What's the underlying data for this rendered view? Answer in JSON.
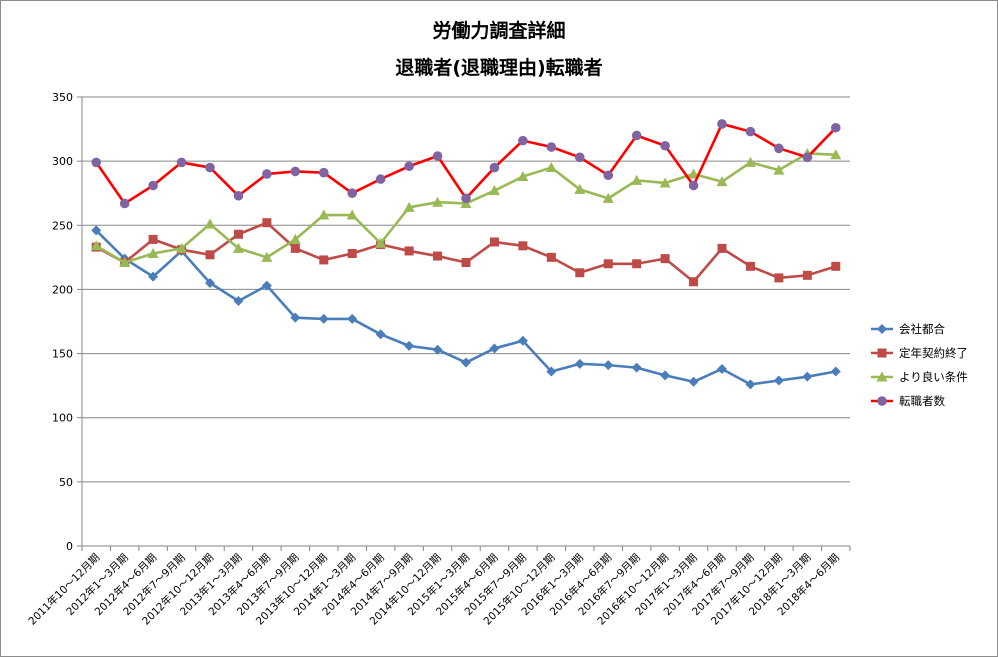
{
  "chart_data": {
    "type": "line",
    "title": [
      "労働力調査詳細",
      "退職者(退職理由)転職者"
    ],
    "xlabel": "",
    "ylabel": "",
    "ylim": [
      0,
      350
    ],
    "yticks": [
      0,
      50,
      100,
      150,
      200,
      250,
      300,
      350
    ],
    "grid": true,
    "legend_position": "right",
    "categories": [
      "2011年10～12月期",
      "2012年1～3月期",
      "2012年4～6月期",
      "2012年7～9月期",
      "2012年10～12月期",
      "2013年1～3月期",
      "2013年4～6月期",
      "2013年7～9月期",
      "2013年10～12月期",
      "2014年1～3月期",
      "2014年4～6月期",
      "2014年7～9月期",
      "2014年10～12月期",
      "2015年1～3月期",
      "2015年4～6月期",
      "2015年7～9月期",
      "2015年10～12月期",
      "2016年1～3月期",
      "2016年4～6月期",
      "2016年7～9月期",
      "2016年10～12月期",
      "2017年1～3月期",
      "2017年4～6月期",
      "2017年7～9月期",
      "2017年10～12月期",
      "2018年1～3月期",
      "2018年4～6月期"
    ],
    "series": [
      {
        "name": "会社都合",
        "color": "#4a7ebb",
        "marker": "diamond",
        "values": [
          246,
          224,
          210,
          230,
          205,
          191,
          203,
          178,
          177,
          177,
          165,
          156,
          153,
          143,
          154,
          160,
          136,
          142,
          141,
          139,
          133,
          128,
          138,
          126,
          129,
          132,
          136
        ]
      },
      {
        "name": "定年契約終了",
        "color": "#be4b48",
        "marker": "square",
        "values": [
          233,
          221,
          239,
          231,
          227,
          243,
          252,
          232,
          223,
          228,
          235,
          230,
          226,
          221,
          237,
          234,
          225,
          213,
          220,
          220,
          224,
          206,
          232,
          218,
          209,
          211,
          218
        ]
      },
      {
        "name": "より良い条件",
        "color": "#98b954",
        "marker": "triangle",
        "values": [
          234,
          221,
          228,
          232,
          251,
          232,
          225,
          239,
          258,
          258,
          236,
          264,
          268,
          267,
          277,
          288,
          295,
          278,
          271,
          285,
          283,
          290,
          284,
          299,
          293,
          306,
          305
        ]
      },
      {
        "name": "転職者数",
        "color": "#ff0000",
        "marker_color": "#8064a2",
        "marker": "circle",
        "values": [
          299,
          267,
          281,
          299,
          295,
          273,
          290,
          292,
          291,
          275,
          286,
          296,
          304,
          271,
          295,
          316,
          311,
          303,
          289,
          320,
          312,
          281,
          329,
          323,
          310,
          303,
          326
        ]
      }
    ]
  }
}
